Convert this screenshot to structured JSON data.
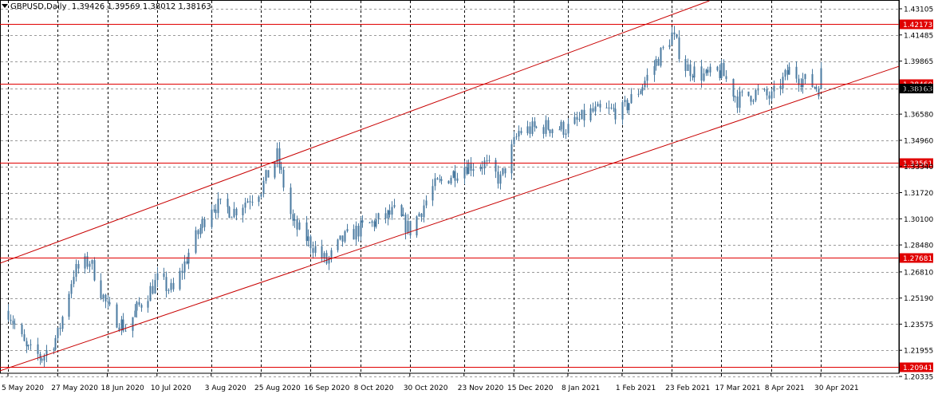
{
  "header": {
    "symbol": "GBPUSD,Daily",
    "ohlc": "1.39426 1.39569 1.38012 1.38163"
  },
  "chart_data": {
    "type": "candlestick",
    "symbol": "GBPUSD",
    "timeframe": "Daily",
    "ylim": [
      1.20335,
      1.43105
    ],
    "grid": true,
    "y_ticks": [
      "1.43105",
      "1.41485",
      "1.39865",
      "1.38165",
      "1.36580",
      "1.34960",
      "1.33340",
      "1.31720",
      "1.30100",
      "1.28480",
      "1.26810",
      "1.25190",
      "1.23575",
      "1.21955",
      "1.20335"
    ],
    "x_ticks": [
      "5 May 2020",
      "27 May 2020",
      "18 Jun 2020",
      "10 Jul 2020",
      "3 Aug 2020",
      "25 Aug 2020",
      "16 Sep 2020",
      "8 Oct 2020",
      "30 Oct 2020",
      "23 Nov 2020",
      "15 Dec 2020",
      "8 Jan 2021",
      "1 Feb 2021",
      "23 Feb 2021",
      "17 Mar 2021",
      "8 Apr 2021",
      "30 Apr 2021"
    ],
    "horizontal_levels": [
      "1.42173",
      "1.38460",
      "1.33561",
      "1.27681",
      "1.20941"
    ],
    "current_price": "1.38163",
    "channel_lines": [
      {
        "name": "upper",
        "points": [
          [
            "5 May 2020",
            1.2753
          ],
          [
            "30 Apr 2021",
            1.4615
          ]
        ]
      },
      {
        "name": "lower",
        "points": [
          [
            "5 May 2020",
            1.2085
          ],
          [
            "30 Apr 2021",
            1.379
          ]
        ]
      }
    ],
    "path_anchors": [
      [
        "5 May 2020",
        1.244
      ],
      [
        "13 May 2020",
        1.22
      ],
      [
        "20 May 2020",
        1.215
      ],
      [
        "27 May 2020",
        1.229
      ],
      [
        "3 Jun 2020",
        1.268
      ],
      [
        "10 Jun 2020",
        1.275
      ],
      [
        "18 Jun 2020",
        1.245
      ],
      [
        "26 Jun 2020",
        1.233
      ],
      [
        "1 Jul 2020",
        1.245
      ],
      [
        "10 Jul 2020",
        1.263
      ],
      [
        "17 Jul 2020",
        1.256
      ],
      [
        "24 Jul 2020",
        1.28
      ],
      [
        "3 Aug 2020",
        1.31
      ],
      [
        "13 Aug 2020",
        1.306
      ],
      [
        "25 Aug 2020",
        1.32
      ],
      [
        "1 Sep 2020",
        1.34
      ],
      [
        "8 Sep 2020",
        1.298
      ],
      [
        "16 Sep 2020",
        1.286
      ],
      [
        "23 Sep 2020",
        1.274
      ],
      [
        "30 Sep 2020",
        1.288
      ],
      [
        "8 Oct 2020",
        1.295
      ],
      [
        "16 Oct 2020",
        1.3
      ],
      [
        "23 Oct 2020",
        1.305
      ],
      [
        "30 Oct 2020",
        1.294
      ],
      [
        "9 Nov 2020",
        1.32
      ],
      [
        "23 Nov 2020",
        1.334
      ],
      [
        "2 Dec 2020",
        1.335
      ],
      [
        "9 Dec 2020",
        1.325
      ],
      [
        "17 Dec 2020",
        1.355
      ],
      [
        "29 Dec 2020",
        1.358
      ],
      [
        "8 Jan 2021",
        1.357
      ],
      [
        "18 Jan 2021",
        1.367
      ],
      [
        "1 Feb 2021",
        1.368
      ],
      [
        "10 Feb 2021",
        1.384
      ],
      [
        "23 Feb 2021",
        1.415
      ],
      [
        "1 Mar 2021",
        1.395
      ],
      [
        "10 Mar 2021",
        1.389
      ],
      [
        "17 Mar 2021",
        1.392
      ],
      [
        "24 Mar 2021",
        1.375
      ],
      [
        "1 Apr 2021",
        1.379
      ],
      [
        "8 Apr 2021",
        1.376
      ],
      [
        "16 Apr 2021",
        1.393
      ],
      [
        "23 Apr 2021",
        1.386
      ],
      [
        "30 Apr 2021",
        1.3816
      ]
    ],
    "colors": {
      "candle": "#4a7aa0",
      "levels": "#e00000",
      "channel": "#c80000",
      "grid": "#000000",
      "axis_text": "#000000"
    }
  }
}
